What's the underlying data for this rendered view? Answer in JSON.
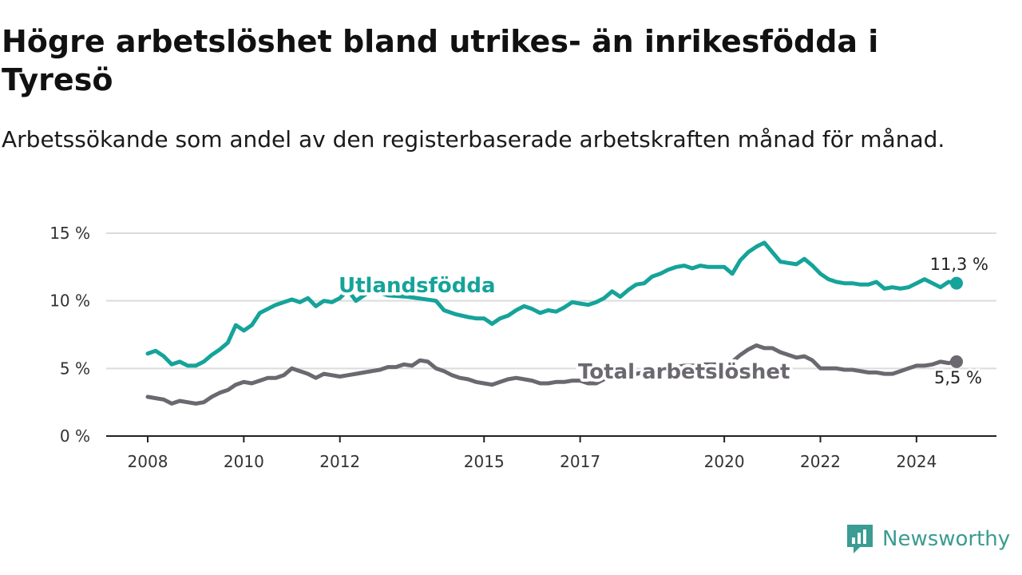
{
  "header": {
    "title": "Högre arbetslöshet bland utrikes- än inrikesfödda i Tyresö",
    "subtitle": "Arbetssökande som andel av den registerbaserade arbetskraften månad för månad."
  },
  "brand": {
    "name": "Newsworthy",
    "icon": "newsworthy-logo-icon",
    "color": "#3a9c92"
  },
  "chart_data": {
    "type": "line",
    "title": "Högre arbetslöshet bland utrikes- än inrikesfödda i Tyresö",
    "subtitle": "Arbetssökande som andel av den registerbaserade arbetskraften månad för månad.",
    "xlabel": "",
    "ylabel": "",
    "ylim": [
      0,
      15
    ],
    "xlim": [
      "2008-01",
      "2024-11"
    ],
    "y_ticks": [
      {
        "value": 0,
        "label": "0 %"
      },
      {
        "value": 5,
        "label": "5 %"
      },
      {
        "value": 10,
        "label": "10 %"
      },
      {
        "value": 15,
        "label": "15 %"
      }
    ],
    "x_ticks": [
      {
        "value": "2008-01",
        "label": "2008"
      },
      {
        "value": "2010-01",
        "label": "2010"
      },
      {
        "value": "2012-01",
        "label": "2012"
      },
      {
        "value": "2015-01",
        "label": "2015"
      },
      {
        "value": "2017-01",
        "label": "2017"
      },
      {
        "value": "2020-01",
        "label": "2020"
      },
      {
        "value": "2022-01",
        "label": "2022"
      },
      {
        "value": "2024-01",
        "label": "2024"
      }
    ],
    "grid": "horizontal",
    "legend": "inline",
    "series": [
      {
        "name": "Utlandsfödda",
        "color": "#15a39a",
        "end_label": "11,3 %",
        "points": [
          [
            "2008-01",
            6.1
          ],
          [
            "2008-03",
            6.3
          ],
          [
            "2008-05",
            5.9
          ],
          [
            "2008-07",
            5.3
          ],
          [
            "2008-09",
            5.5
          ],
          [
            "2008-11",
            5.2
          ],
          [
            "2009-01",
            5.2
          ],
          [
            "2009-03",
            5.5
          ],
          [
            "2009-05",
            6.0
          ],
          [
            "2009-07",
            6.4
          ],
          [
            "2009-09",
            6.9
          ],
          [
            "2009-11",
            8.2
          ],
          [
            "2010-01",
            7.8
          ],
          [
            "2010-03",
            8.2
          ],
          [
            "2010-05",
            9.1
          ],
          [
            "2010-07",
            9.4
          ],
          [
            "2010-09",
            9.7
          ],
          [
            "2010-11",
            9.9
          ],
          [
            "2011-01",
            10.1
          ],
          [
            "2011-03",
            9.9
          ],
          [
            "2011-05",
            10.2
          ],
          [
            "2011-07",
            9.6
          ],
          [
            "2011-09",
            10.0
          ],
          [
            "2011-11",
            9.9
          ],
          [
            "2012-01",
            10.2
          ],
          [
            "2012-03",
            10.8
          ],
          [
            "2012-05",
            10.0
          ],
          [
            "2012-07",
            10.4
          ],
          [
            "2012-09",
            10.8
          ],
          [
            "2013-01",
            10.4
          ],
          [
            "2013-06",
            10.3
          ],
          [
            "2014-01",
            10.0
          ],
          [
            "2014-03",
            9.3
          ],
          [
            "2014-06",
            9.0
          ],
          [
            "2014-09",
            8.8
          ],
          [
            "2014-11",
            8.7
          ],
          [
            "2015-01",
            8.7
          ],
          [
            "2015-03",
            8.3
          ],
          [
            "2015-05",
            8.7
          ],
          [
            "2015-07",
            8.9
          ],
          [
            "2015-09",
            9.3
          ],
          [
            "2015-11",
            9.6
          ],
          [
            "2016-01",
            9.4
          ],
          [
            "2016-03",
            9.1
          ],
          [
            "2016-05",
            9.3
          ],
          [
            "2016-07",
            9.2
          ],
          [
            "2016-09",
            9.5
          ],
          [
            "2016-11",
            9.9
          ],
          [
            "2017-01",
            9.8
          ],
          [
            "2017-03",
            9.7
          ],
          [
            "2017-05",
            9.9
          ],
          [
            "2017-07",
            10.2
          ],
          [
            "2017-09",
            10.7
          ],
          [
            "2017-11",
            10.3
          ],
          [
            "2018-01",
            10.8
          ],
          [
            "2018-03",
            11.2
          ],
          [
            "2018-05",
            11.3
          ],
          [
            "2018-07",
            11.8
          ],
          [
            "2018-09",
            12.0
          ],
          [
            "2018-11",
            12.3
          ],
          [
            "2019-01",
            12.5
          ],
          [
            "2019-03",
            12.6
          ],
          [
            "2019-05",
            12.4
          ],
          [
            "2019-07",
            12.6
          ],
          [
            "2019-09",
            12.5
          ],
          [
            "2019-11",
            12.5
          ],
          [
            "2020-01",
            12.5
          ],
          [
            "2020-03",
            12.0
          ],
          [
            "2020-05",
            13.0
          ],
          [
            "2020-07",
            13.6
          ],
          [
            "2020-09",
            14.0
          ],
          [
            "2020-11",
            14.3
          ],
          [
            "2021-01",
            13.6
          ],
          [
            "2021-03",
            12.9
          ],
          [
            "2021-05",
            12.8
          ],
          [
            "2021-07",
            12.7
          ],
          [
            "2021-09",
            13.1
          ],
          [
            "2021-11",
            12.6
          ],
          [
            "2022-01",
            12.0
          ],
          [
            "2022-03",
            11.6
          ],
          [
            "2022-05",
            11.4
          ],
          [
            "2022-07",
            11.3
          ],
          [
            "2022-09",
            11.3
          ],
          [
            "2022-11",
            11.2
          ],
          [
            "2023-01",
            11.2
          ],
          [
            "2023-03",
            11.4
          ],
          [
            "2023-05",
            10.9
          ],
          [
            "2023-07",
            11.0
          ],
          [
            "2023-09",
            10.9
          ],
          [
            "2023-11",
            11.0
          ],
          [
            "2024-01",
            11.3
          ],
          [
            "2024-03",
            11.6
          ],
          [
            "2024-05",
            11.3
          ],
          [
            "2024-07",
            11.0
          ],
          [
            "2024-09",
            11.4
          ],
          [
            "2024-11",
            11.3
          ]
        ]
      },
      {
        "name": "Total arbetslöshet",
        "color": "#6b6870",
        "end_label": "5,5 %",
        "points": [
          [
            "2008-01",
            2.9
          ],
          [
            "2008-03",
            2.8
          ],
          [
            "2008-05",
            2.7
          ],
          [
            "2008-07",
            2.4
          ],
          [
            "2008-09",
            2.6
          ],
          [
            "2008-11",
            2.5
          ],
          [
            "2009-01",
            2.4
          ],
          [
            "2009-03",
            2.5
          ],
          [
            "2009-05",
            2.9
          ],
          [
            "2009-07",
            3.2
          ],
          [
            "2009-09",
            3.4
          ],
          [
            "2009-11",
            3.8
          ],
          [
            "2010-01",
            4.0
          ],
          [
            "2010-03",
            3.9
          ],
          [
            "2010-05",
            4.1
          ],
          [
            "2010-07",
            4.3
          ],
          [
            "2010-09",
            4.3
          ],
          [
            "2010-11",
            4.5
          ],
          [
            "2011-01",
            5.0
          ],
          [
            "2011-03",
            4.8
          ],
          [
            "2011-05",
            4.6
          ],
          [
            "2011-07",
            4.3
          ],
          [
            "2011-09",
            4.6
          ],
          [
            "2011-11",
            4.5
          ],
          [
            "2012-01",
            4.4
          ],
          [
            "2012-03",
            4.5
          ],
          [
            "2012-05",
            4.6
          ],
          [
            "2012-07",
            4.7
          ],
          [
            "2012-09",
            4.8
          ],
          [
            "2012-11",
            4.9
          ],
          [
            "2013-01",
            5.1
          ],
          [
            "2013-03",
            5.1
          ],
          [
            "2013-05",
            5.3
          ],
          [
            "2013-07",
            5.2
          ],
          [
            "2013-09",
            5.6
          ],
          [
            "2013-11",
            5.5
          ],
          [
            "2014-01",
            5.0
          ],
          [
            "2014-03",
            4.8
          ],
          [
            "2014-05",
            4.5
          ],
          [
            "2014-07",
            4.3
          ],
          [
            "2014-09",
            4.2
          ],
          [
            "2014-11",
            4.0
          ],
          [
            "2015-01",
            3.9
          ],
          [
            "2015-03",
            3.8
          ],
          [
            "2015-05",
            4.0
          ],
          [
            "2015-07",
            4.2
          ],
          [
            "2015-09",
            4.3
          ],
          [
            "2015-11",
            4.2
          ],
          [
            "2016-01",
            4.1
          ],
          [
            "2016-03",
            3.9
          ],
          [
            "2016-05",
            3.9
          ],
          [
            "2016-07",
            4.0
          ],
          [
            "2016-09",
            4.0
          ],
          [
            "2016-11",
            4.1
          ],
          [
            "2017-01",
            4.1
          ],
          [
            "2017-03",
            3.9
          ],
          [
            "2017-05",
            3.9
          ],
          [
            "2017-07",
            4.2
          ],
          [
            "2017-09",
            4.4
          ],
          [
            "2017-11",
            4.3
          ],
          [
            "2018-01",
            4.5
          ],
          [
            "2018-03",
            4.6
          ],
          [
            "2018-05",
            4.7
          ],
          [
            "2018-07",
            4.9
          ],
          [
            "2018-09",
            5.0
          ],
          [
            "2018-11",
            5.1
          ],
          [
            "2019-01",
            5.1
          ],
          [
            "2019-03",
            5.2
          ],
          [
            "2019-05",
            5.2
          ],
          [
            "2019-07",
            5.3
          ],
          [
            "2019-09",
            5.3
          ],
          [
            "2019-11",
            5.3
          ],
          [
            "2020-01",
            5.4
          ],
          [
            "2020-03",
            5.5
          ],
          [
            "2020-05",
            6.0
          ],
          [
            "2020-07",
            6.4
          ],
          [
            "2020-09",
            6.7
          ],
          [
            "2020-11",
            6.5
          ],
          [
            "2021-01",
            6.5
          ],
          [
            "2021-03",
            6.2
          ],
          [
            "2021-05",
            6.0
          ],
          [
            "2021-07",
            5.8
          ],
          [
            "2021-09",
            5.9
          ],
          [
            "2021-11",
            5.6
          ],
          [
            "2022-01",
            5.0
          ],
          [
            "2022-03",
            5.0
          ],
          [
            "2022-05",
            5.0
          ],
          [
            "2022-07",
            4.9
          ],
          [
            "2022-09",
            4.9
          ],
          [
            "2022-11",
            4.8
          ],
          [
            "2023-01",
            4.7
          ],
          [
            "2023-03",
            4.7
          ],
          [
            "2023-05",
            4.6
          ],
          [
            "2023-07",
            4.6
          ],
          [
            "2023-09",
            4.8
          ],
          [
            "2023-11",
            5.0
          ],
          [
            "2024-01",
            5.2
          ],
          [
            "2024-03",
            5.2
          ],
          [
            "2024-05",
            5.3
          ],
          [
            "2024-07",
            5.5
          ],
          [
            "2024-09",
            5.4
          ],
          [
            "2024-11",
            5.5
          ]
        ]
      }
    ]
  }
}
